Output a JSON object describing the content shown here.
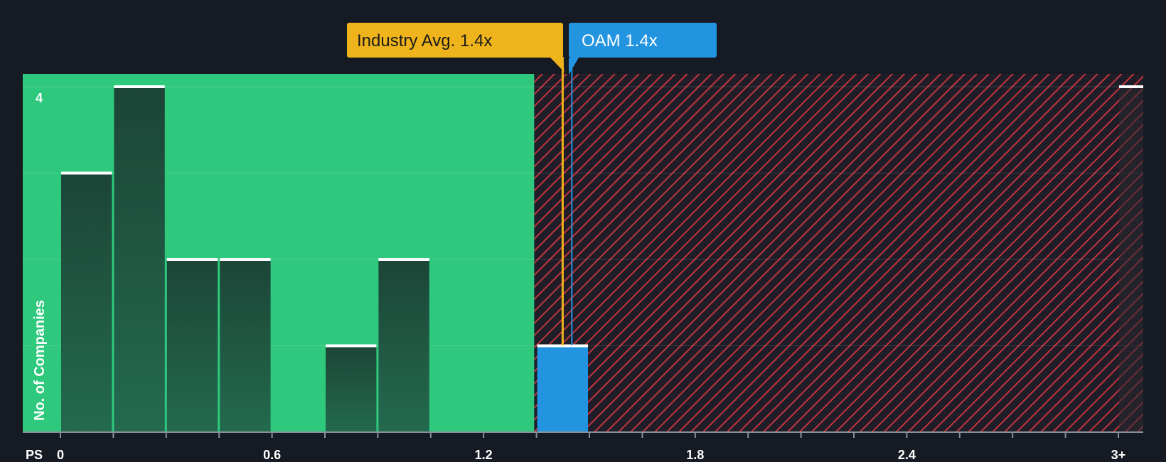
{
  "chart_data": {
    "type": "bar",
    "xlabel": "PS",
    "ylabel": "No. of Companies",
    "x_tick_labels": [
      "0",
      "0.6",
      "1.2",
      "1.8",
      "2.4",
      "3+"
    ],
    "x_tick_values": [
      0,
      0.6,
      1.2,
      1.8,
      2.4,
      3.0
    ],
    "y_tick_labels": [
      "4"
    ],
    "ylim": [
      0,
      4
    ],
    "grid": true,
    "bin_width": 0.15,
    "bins": [
      {
        "start": 0.0,
        "count": 3
      },
      {
        "start": 0.15,
        "count": 4
      },
      {
        "start": 0.3,
        "count": 2
      },
      {
        "start": 0.45,
        "count": 2
      },
      {
        "start": 0.75,
        "count": 1
      },
      {
        "start": 0.9,
        "count": 2
      },
      {
        "start": 1.35,
        "count": 1,
        "highlight": true
      },
      {
        "start": 3.0,
        "count": 4
      }
    ],
    "industry_avg": {
      "label": "Industry Avg. 1.4x",
      "value": 1.4
    },
    "company": {
      "label": "OAM 1.4x",
      "value": 1.43
    },
    "colors": {
      "background": "#151a23",
      "fair_zone": "#2ec97d",
      "bar": "#1d4a3e",
      "highlight_bar": "#2394e0",
      "hatch": "#c0353f",
      "industry": "#efb41c",
      "company": "#2394e0"
    }
  }
}
